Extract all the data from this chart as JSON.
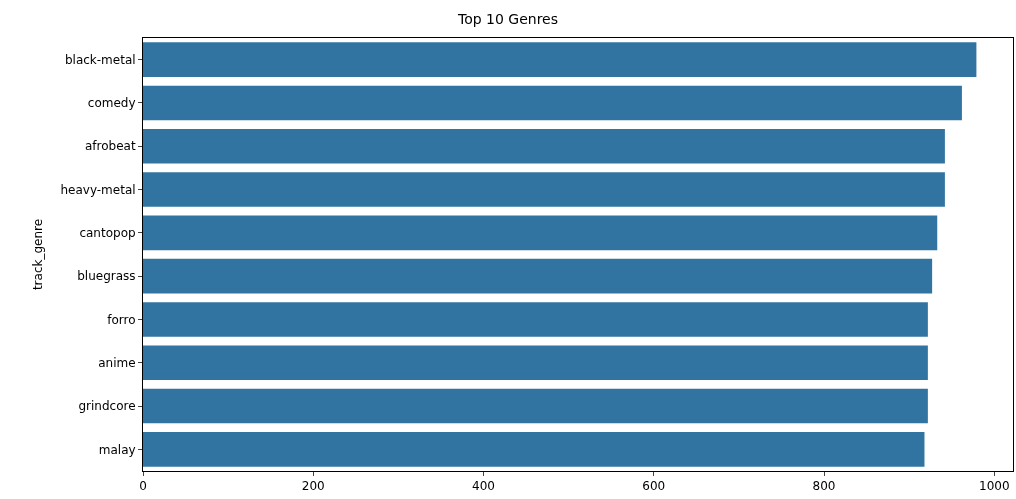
{
  "chart_data": {
    "type": "bar",
    "orientation": "horizontal",
    "title": "Top 10 Genres",
    "ylabel": "track_genre",
    "categories": [
      "black-metal",
      "comedy",
      "afrobeat",
      "heavy-metal",
      "cantopop",
      "bluegrass",
      "forro",
      "anime",
      "grindcore",
      "malay"
    ],
    "values": [
      979,
      962,
      942,
      942,
      933,
      927,
      922,
      922,
      922,
      918
    ],
    "color": "#3274a1",
    "xlim": [
      0,
      1022
    ],
    "xticks": [
      0,
      200,
      400,
      600,
      800,
      1000
    ]
  }
}
